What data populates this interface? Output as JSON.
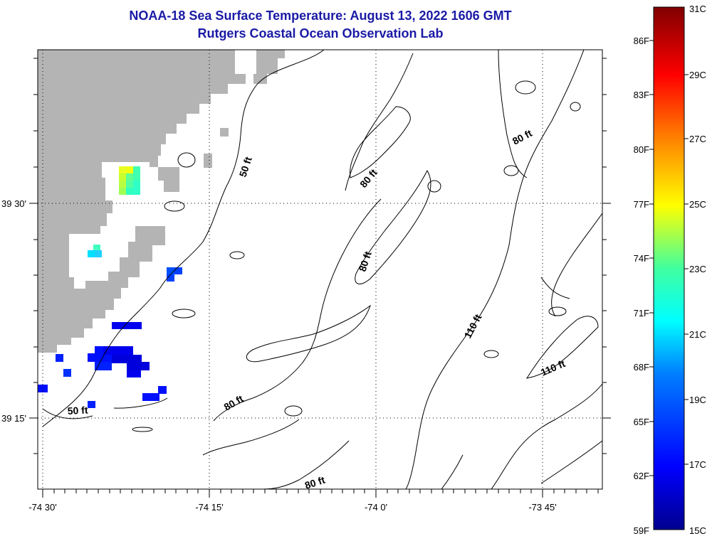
{
  "title": {
    "line1": "NOAA-18 Sea Surface Temperature:  August 13, 2022 1606 GMT",
    "line2": "Rutgers Coastal Ocean Observation Lab"
  },
  "axes": {
    "x_ticks": [
      "-74 30'",
      "-74 15'",
      "-74 0'",
      "-73 45'"
    ],
    "y_ticks": [
      "39 30'",
      "39 15'"
    ]
  },
  "contour_labels": [
    "50 ft",
    "50 ft",
    "80 ft",
    "80 ft",
    "80 ft",
    "80 ft",
    "80 ft",
    "110 ft",
    "110 ft"
  ],
  "colorbar": {
    "fahrenheit_labels": [
      "59F",
      "62F",
      "65F",
      "68F",
      "71F",
      "74F",
      "77F",
      "80F",
      "83F",
      "86F"
    ],
    "celsius_labels": [
      "15C",
      "17C",
      "19C",
      "21C",
      "23C",
      "25C",
      "27C",
      "29C",
      "31C"
    ],
    "range_c": [
      15,
      31
    ],
    "range_f": [
      59,
      88
    ]
  },
  "colors": {
    "title": "#1a1aa6",
    "land": "#b4b4b4",
    "water": "#ffffff",
    "contour": "#000000"
  }
}
